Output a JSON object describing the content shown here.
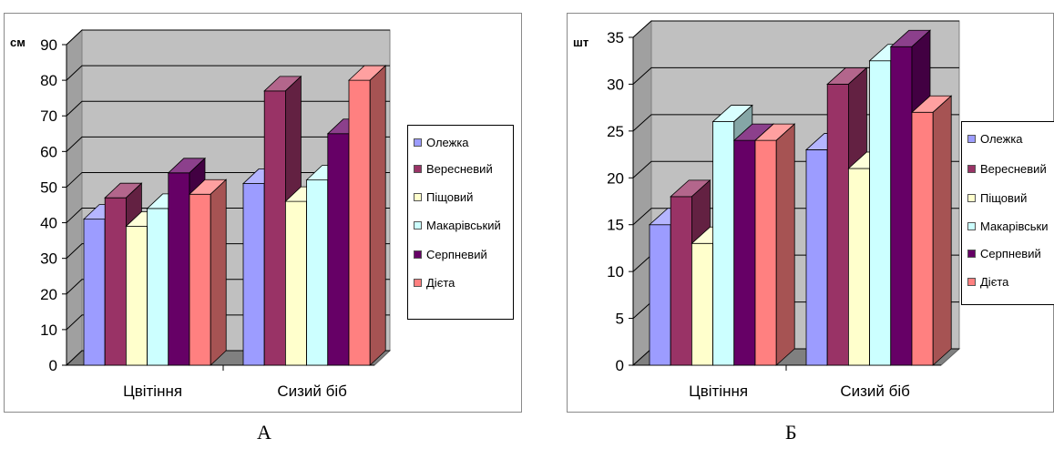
{
  "panels": [
    {
      "label": "А"
    },
    {
      "label": "Б"
    }
  ],
  "colors": {
    "series": [
      "#9c9cff",
      "#993366",
      "#ffffcc",
      "#ccffff",
      "#660066",
      "#ff8080"
    ],
    "wall": "#c0c0c0",
    "floor": "#808080"
  },
  "chart_data": [
    {
      "type": "bar",
      "ylabel": "см",
      "categories": [
        "Цвітіння",
        "Сизий біб"
      ],
      "ylim": [
        0,
        90
      ],
      "yticks": [
        0,
        10,
        20,
        30,
        40,
        50,
        60,
        70,
        80,
        90
      ],
      "grid": true,
      "legend": "right",
      "series": [
        {
          "name": "Олежка",
          "values": [
            41,
            51
          ]
        },
        {
          "name": "Вересневий",
          "values": [
            47,
            77
          ]
        },
        {
          "name": "Піщовий",
          "values": [
            39,
            46
          ]
        },
        {
          "name": "Макарівський",
          "values": [
            44,
            52
          ]
        },
        {
          "name": "Серпневий",
          "values": [
            54,
            65
          ]
        },
        {
          "name": "Дієта",
          "values": [
            48,
            80
          ]
        }
      ]
    },
    {
      "type": "bar",
      "ylabel": "шт",
      "categories": [
        "Цвітіння",
        "Сизий біб"
      ],
      "ylim": [
        0,
        35
      ],
      "yticks": [
        0,
        5,
        10,
        15,
        20,
        25,
        30,
        35
      ],
      "grid": true,
      "legend": "right",
      "series": [
        {
          "name": "Олежка",
          "values": [
            15,
            23
          ]
        },
        {
          "name": "Вересневий",
          "values": [
            18,
            30
          ]
        },
        {
          "name": "Піщовий",
          "values": [
            13,
            21
          ]
        },
        {
          "name": "Макарівськи",
          "values": [
            26,
            32.5
          ]
        },
        {
          "name": "Серпневий",
          "values": [
            24,
            34
          ]
        },
        {
          "name": "Дієта",
          "values": [
            24,
            27
          ]
        }
      ]
    }
  ]
}
